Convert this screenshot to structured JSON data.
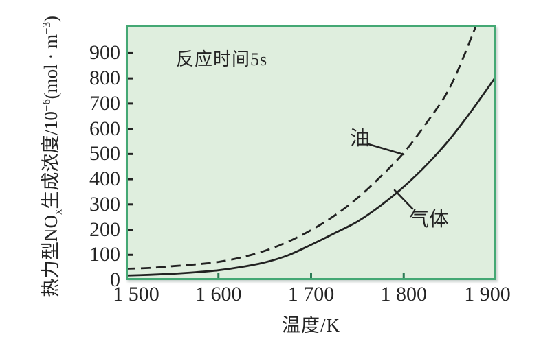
{
  "figure": {
    "annotation": "反应时间5s",
    "xaxis": {
      "title": "温度/K"
    },
    "yaxis": {
      "title_parts": {
        "p1": "热力型NO",
        "p2": "x",
        "p3": "生成浓度/10",
        "p4": "−6",
        "p5": "(mol · m",
        "p6": "−3",
        "p7": ")"
      }
    },
    "series_labels": {
      "oil": "油",
      "gas": "气体"
    }
  },
  "chart_data": {
    "type": "line",
    "title": "",
    "annotation": "反应时间5s",
    "xlabel": "温度/K",
    "ylabel": "热力型NOx生成浓度/10−6(mol·m−3)",
    "xlim": [
      1500,
      1900
    ],
    "ylim": [
      0,
      1010
    ],
    "grid": false,
    "legend_position": "inline-labels",
    "xticks": [
      {
        "value": 1500,
        "label": "1 500"
      },
      {
        "value": 1600,
        "label": "1 600"
      },
      {
        "value": 1700,
        "label": "1 700"
      },
      {
        "value": 1800,
        "label": "1 800"
      },
      {
        "value": 1900,
        "label": "1 900"
      }
    ],
    "yticks": [
      {
        "value": 0,
        "label": "0"
      },
      {
        "value": 100,
        "label": "100"
      },
      {
        "value": 200,
        "label": "200"
      },
      {
        "value": 300,
        "label": "300"
      },
      {
        "value": 400,
        "label": "400"
      },
      {
        "value": 500,
        "label": "500"
      },
      {
        "value": 600,
        "label": "600"
      },
      {
        "value": 700,
        "label": "700"
      },
      {
        "value": 800,
        "label": "800"
      },
      {
        "value": 900,
        "label": "900"
      }
    ],
    "series": [
      {
        "id": "oil",
        "name": "油",
        "style": "dashed",
        "x": [
          1500,
          1525,
          1550,
          1575,
          1600,
          1625,
          1650,
          1675,
          1700,
          1725,
          1750,
          1775,
          1800,
          1825,
          1850,
          1875,
          1900
        ],
        "y": [
          45,
          48,
          55,
          62,
          72,
          90,
          116,
          152,
          198,
          255,
          325,
          410,
          505,
          625,
          765,
          980,
          1220
        ]
      },
      {
        "id": "gas",
        "name": "气体",
        "style": "solid",
        "x": [
          1500,
          1525,
          1550,
          1575,
          1600,
          1625,
          1650,
          1675,
          1700,
          1725,
          1750,
          1775,
          1800,
          1825,
          1850,
          1875,
          1900
        ],
        "y": [
          18,
          21,
          25,
          31,
          39,
          52,
          70,
          98,
          140,
          185,
          232,
          295,
          370,
          458,
          560,
          680,
          810
        ]
      }
    ],
    "colors": {
      "plot_fill": "#dfeede",
      "plot_border": "#44a874",
      "curve": "#222222",
      "y_tick": "#222222",
      "x_tick": "#2c7b55"
    }
  }
}
